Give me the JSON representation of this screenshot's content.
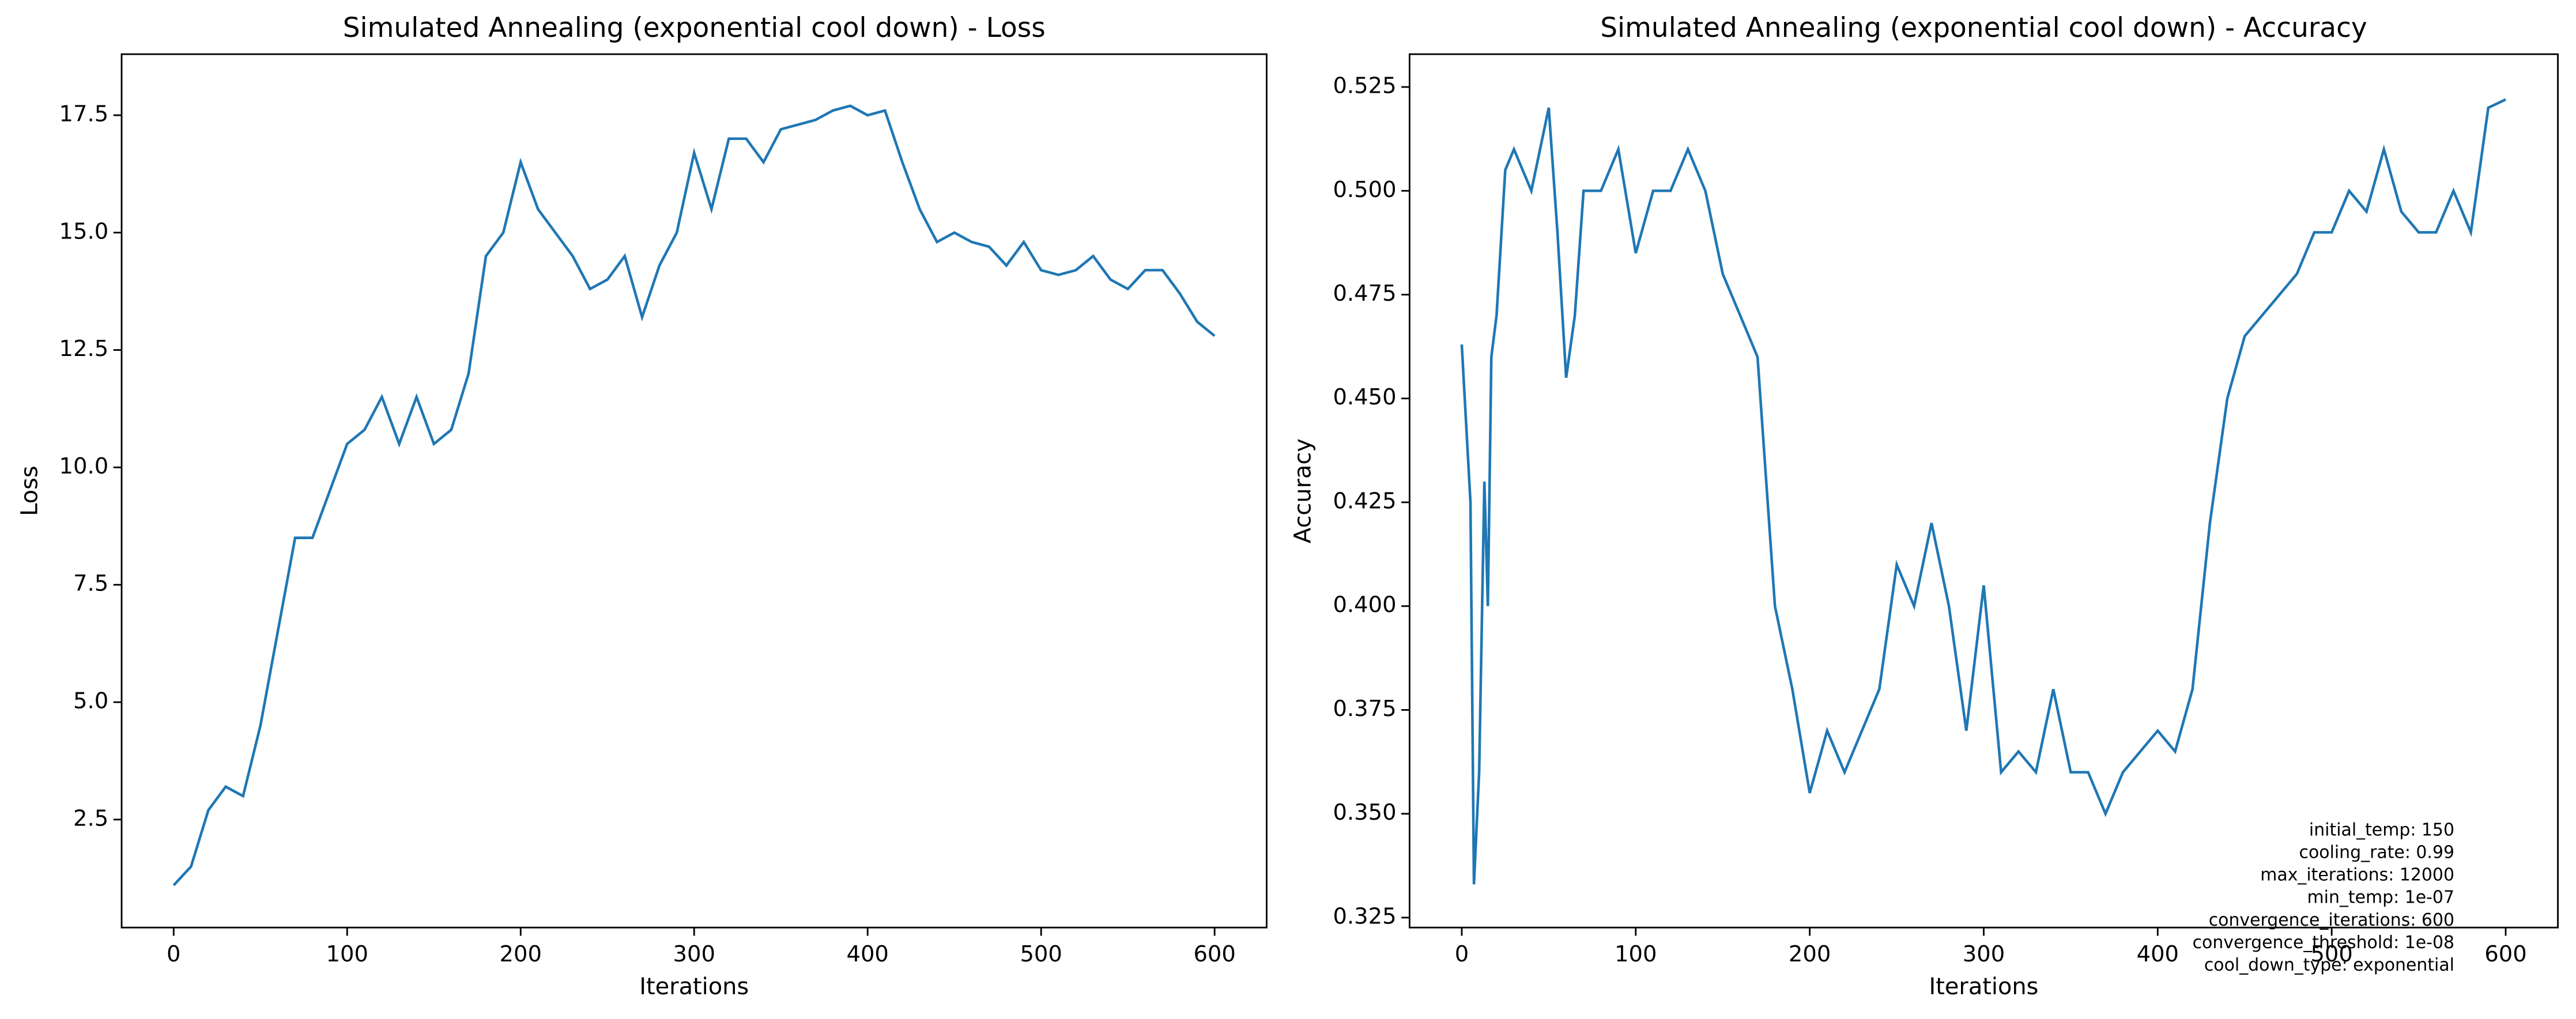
{
  "chart_data": [
    {
      "type": "line",
      "title": "Simulated Annealing (exponential cool down) - Loss",
      "x_label": "Iterations",
      "y_label": "Loss",
      "x": [
        0,
        10,
        20,
        30,
        40,
        50,
        60,
        70,
        80,
        90,
        100,
        110,
        120,
        130,
        140,
        150,
        160,
        170,
        180,
        190,
        200,
        210,
        220,
        230,
        240,
        250,
        260,
        270,
        280,
        290,
        300,
        310,
        320,
        330,
        340,
        350,
        360,
        370,
        380,
        390,
        400,
        410,
        420,
        430,
        440,
        450,
        460,
        470,
        480,
        490,
        500,
        510,
        520,
        530,
        540,
        550,
        560,
        570,
        580,
        590,
        600
      ],
      "series": [
        {
          "name": "Loss",
          "color": "#1f77b4",
          "values": [
            1.1,
            1.5,
            2.7,
            3.2,
            3.0,
            4.5,
            6.5,
            8.5,
            8.5,
            9.5,
            10.5,
            10.8,
            11.5,
            10.5,
            11.5,
            10.5,
            10.8,
            12,
            14.5,
            15,
            16.5,
            15.5,
            15,
            14.5,
            13.8,
            14,
            14.5,
            13.2,
            14.3,
            15,
            16.7,
            15.5,
            17,
            17,
            16.5,
            17.2,
            17.3,
            17.4,
            17.6,
            17.7,
            17.5,
            17.6,
            16.5,
            15.5,
            14.8,
            15,
            14.8,
            14.7,
            14.3,
            14.8,
            14.2,
            14.1,
            14.2,
            14.5,
            14,
            13.8,
            14.2,
            14.2,
            13.7,
            13.1,
            12.8
          ]
        }
      ],
      "xlim": [
        -30,
        630
      ],
      "xticks": [
        0,
        100,
        200,
        300,
        400,
        500,
        600
      ],
      "ylim": [
        0.2,
        18.8
      ],
      "yticks": [
        2.5,
        {
          "value": 5,
          "label": "5.0"
        },
        7.5,
        {
          "value": 10,
          "label": "10.0"
        },
        12.5,
        {
          "value": 15,
          "label": "15.0"
        },
        17.5
      ],
      "grid": false
    },
    {
      "type": "line",
      "title": "Simulated Annealing (exponential cool down) - Accuracy",
      "x_label": "Iterations",
      "y_label": "Accuracy",
      "x": [
        0,
        5,
        7,
        10,
        13,
        15,
        17,
        20,
        25,
        30,
        40,
        45,
        50,
        55,
        60,
        65,
        70,
        80,
        90,
        100,
        110,
        120,
        130,
        140,
        150,
        160,
        170,
        180,
        190,
        200,
        210,
        220,
        230,
        240,
        250,
        260,
        270,
        280,
        290,
        300,
        310,
        320,
        330,
        340,
        350,
        360,
        370,
        380,
        390,
        400,
        410,
        420,
        430,
        440,
        450,
        460,
        470,
        480,
        490,
        500,
        510,
        520,
        530,
        540,
        550,
        560,
        570,
        580,
        590,
        600
      ],
      "series": [
        {
          "name": "Accuracy",
          "color": "#1f77b4",
          "values": [
            0.463,
            0.425,
            0.333,
            0.36,
            0.43,
            0.4,
            0.46,
            0.47,
            0.505,
            0.51,
            0.5,
            0.51,
            0.52,
            0.49,
            0.455,
            0.47,
            0.5,
            0.5,
            0.51,
            0.485,
            0.5,
            0.5,
            0.51,
            0.5,
            0.48,
            0.47,
            0.46,
            0.4,
            0.38,
            0.355,
            0.37,
            0.36,
            0.37,
            0.38,
            0.41,
            0.4,
            0.42,
            0.4,
            0.37,
            0.405,
            0.36,
            0.365,
            0.36,
            0.38,
            0.36,
            0.36,
            0.35,
            0.36,
            0.365,
            0.37,
            0.365,
            0.38,
            0.42,
            0.45,
            0.465,
            0.47,
            0.475,
            0.48,
            0.49,
            0.49,
            0.5,
            0.495,
            0.51,
            0.495,
            0.49,
            0.49,
            0.5,
            0.49,
            0.52,
            0.522
          ]
        }
      ],
      "xlim": [
        -30,
        630
      ],
      "xticks": [
        0,
        100,
        200,
        300,
        400,
        500,
        600
      ],
      "ylim": [
        0.3226,
        0.5329
      ],
      "yticks": [
        0.325,
        {
          "value": 0.35,
          "label": "0.350"
        },
        0.375,
        {
          "value": 0.4,
          "label": "0.400"
        },
        0.425,
        {
          "value": 0.45,
          "label": "0.450"
        },
        0.475,
        {
          "value": 0.5,
          "label": "0.500"
        },
        0.525
      ],
      "grid": false,
      "annotation_lines": [
        "initial_temp: 150",
        "cooling_rate: 0.99",
        "max_iterations: 12000",
        "min_temp: 1e-07",
        "convergence_iterations: 600",
        "convergence_threshold: 1e-08",
        "cool_down_type: exponential"
      ]
    }
  ]
}
